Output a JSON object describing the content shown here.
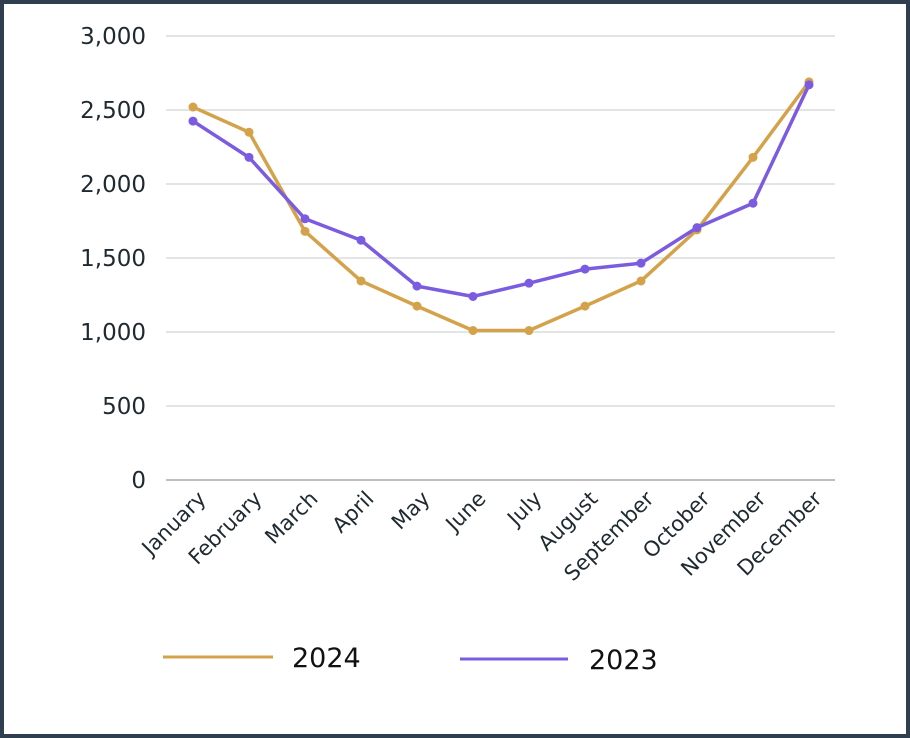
{
  "chart_data": {
    "type": "line",
    "title": "",
    "xlabel": "",
    "ylabel": "",
    "ylim": [
      0,
      3000
    ],
    "yticks": [
      {
        "value": 0,
        "label": "0"
      },
      {
        "value": 500,
        "label": "500"
      },
      {
        "value": 1000,
        "label": "1,000"
      },
      {
        "value": 1500,
        "label": "1,500"
      },
      {
        "value": 2000,
        "label": "2,000"
      },
      {
        "value": 2500,
        "label": "2,500"
      },
      {
        "value": 3000,
        "label": "3,000"
      }
    ],
    "grid": true,
    "legend_position": "bottom",
    "categories": [
      "January",
      "February",
      "March",
      "April",
      "May",
      "June",
      "July",
      "August",
      "September",
      "October",
      "November",
      "December"
    ],
    "series": [
      {
        "name": "2024",
        "color": "#d4a24a",
        "values": [
          2520,
          2350,
          1680,
          1345,
          1175,
          1010,
          1010,
          1175,
          1345,
          1690,
          2180,
          2690
        ]
      },
      {
        "name": "2023",
        "color": "#7b5ce0",
        "values": [
          2425,
          2180,
          1765,
          1620,
          1310,
          1240,
          1330,
          1425,
          1465,
          1705,
          1870,
          2670
        ]
      }
    ]
  }
}
